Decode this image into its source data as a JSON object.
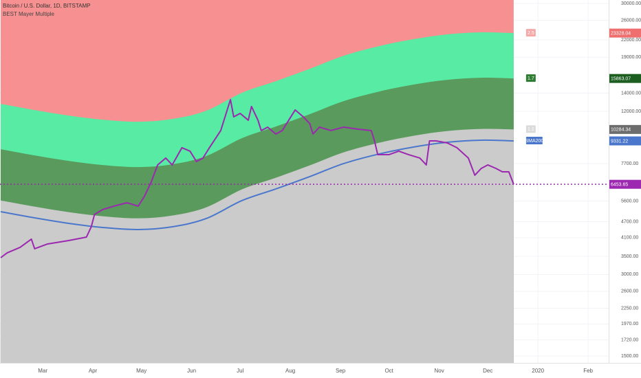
{
  "chart_data": {
    "type": "mayer-bands",
    "title": "Bitcoin / U.S. Dollar, 1D, BITSTAMP",
    "subtitle": "BEST Mayer Multiple",
    "log_scale": true,
    "grid": true,
    "top_fill": "#f79191",
    "xlim": [
      32.6,
      408.7
    ],
    "xticks": [
      {
        "value": 59,
        "label": "Mar"
      },
      {
        "value": 90,
        "label": "Apr"
      },
      {
        "value": 120,
        "label": "May"
      },
      {
        "value": 151,
        "label": "Jun"
      },
      {
        "value": 181,
        "label": "Jul"
      },
      {
        "value": 212,
        "label": "Aug"
      },
      {
        "value": 243,
        "label": "Sep"
      },
      {
        "value": 273,
        "label": "Oct"
      },
      {
        "value": 304,
        "label": "Nov"
      },
      {
        "value": 334,
        "label": "Dec"
      },
      {
        "value": 365,
        "label": "2020"
      },
      {
        "value": 396,
        "label": "Feb"
      }
    ],
    "ylim": [
      1415,
      30900
    ],
    "yticks": [
      {
        "value": 30000,
        "label": "30000.00"
      },
      {
        "value": 26000,
        "label": "26000.00"
      },
      {
        "value": 22000,
        "label": "22000.00"
      },
      {
        "value": 19000,
        "label": "19000.00"
      },
      {
        "value": 14000,
        "label": "14000.00"
      },
      {
        "value": 12000,
        "label": "12000.00"
      },
      {
        "value": 7700,
        "label": "7700.00"
      },
      {
        "value": 5600,
        "label": "5600.00"
      },
      {
        "value": 4700,
        "label": "4700.00"
      },
      {
        "value": 4100,
        "label": "4100.00"
      },
      {
        "value": 3500,
        "label": "3500.00"
      },
      {
        "value": 3000,
        "label": "3000.00"
      },
      {
        "value": 2600,
        "label": "2600.00"
      },
      {
        "value": 2250,
        "label": "2250.00"
      },
      {
        "value": 1970,
        "label": "1970.00"
      },
      {
        "value": 1720,
        "label": "1720.00"
      },
      {
        "value": 1500,
        "label": "1500.00"
      }
    ],
    "series": [
      {
        "name": "2.5",
        "kind": "band",
        "color": "#f28b8b",
        "tag_color": "#ef6f6f",
        "fill": "#57eba4",
        "x": [
          33,
          54,
          75,
          96,
          118,
          139,
          160,
          182,
          203,
          224,
          245,
          267,
          288,
          309,
          330,
          350
        ],
        "values": [
          12788,
          12133,
          11578,
          11180,
          10985,
          11245,
          12060,
          14040,
          15505,
          17225,
          19245,
          20888,
          22143,
          23068,
          23475,
          23328.04
        ]
      },
      {
        "name": "1.7",
        "kind": "band",
        "color": "#2e7d32",
        "tag_color": "#1b5e20",
        "fill": "#5a9a5c",
        "x": [
          33,
          54,
          75,
          96,
          118,
          139,
          160,
          182,
          203,
          224,
          245,
          267,
          288,
          309,
          330,
          350
        ],
        "values": [
          8696,
          8250,
          7873,
          7602,
          7470,
          7647,
          8201,
          9547,
          10543,
          11713,
          13087,
          14204,
          15057,
          15686,
          15963,
          15863.07
        ]
      },
      {
        "name": "1.1",
        "kind": "band",
        "color": "#cfcfcf",
        "tag_color": "#6d6d6d",
        "fill": "#cbcbcb",
        "x": [
          33,
          54,
          75,
          96,
          118,
          139,
          160,
          182,
          203,
          224,
          245,
          267,
          288,
          309,
          330,
          350
        ],
        "values": [
          5627,
          5338,
          5094,
          4919,
          4833,
          4948,
          5306,
          6178,
          6822,
          7579,
          8468,
          9191,
          9743,
          10150,
          10329,
          10284.34
        ]
      },
      {
        "name": "SMA200",
        "kind": "line",
        "color": "#4a76cc",
        "tag_color": "#4a76cc",
        "x": [
          33,
          54,
          75,
          96,
          118,
          139,
          160,
          182,
          203,
          224,
          245,
          267,
          288,
          309,
          330,
          350
        ],
        "values": [
          5115,
          4853,
          4631,
          4472,
          4394,
          4498,
          4824,
          5616,
          6202,
          6890,
          7698,
          8355,
          8857,
          9227,
          9390,
          9331.22
        ]
      },
      {
        "kind": "price",
        "color": "#9c27b0",
        "tag_color": "#9c27b0",
        "x": [
          33,
          37,
          45,
          52,
          54,
          62,
          75,
          86,
          89,
          91,
          96,
          103,
          111,
          118,
          122,
          126,
          130,
          135,
          139,
          145,
          150,
          154,
          158,
          162,
          169,
          173,
          175,
          177,
          181,
          186,
          188,
          192,
          194,
          198,
          203,
          207,
          211,
          215,
          220,
          224,
          226,
          230,
          237,
          245,
          254,
          262,
          264,
          266,
          273,
          279,
          285,
          292,
          296,
          298,
          302,
          309,
          315,
          322,
          326,
          330,
          334,
          339,
          343,
          347,
          350
        ],
        "values": [
          3458,
          3603,
          3775,
          4049,
          3731,
          3887,
          4002,
          4120,
          4498,
          4997,
          5205,
          5360,
          5518,
          5360,
          5850,
          6575,
          7609,
          8066,
          7609,
          8805,
          8552,
          7834,
          8066,
          8805,
          10189,
          12141,
          13252,
          11452,
          11791,
          11124,
          12501,
          11124,
          10189,
          10491,
          9896,
          10189,
          11124,
          12141,
          11452,
          10801,
          9896,
          10491,
          10189,
          10491,
          10309,
          10189,
          9335,
          8305,
          8305,
          8552,
          8305,
          8066,
          7609,
          9335,
          9335,
          9171,
          8805,
          8066,
          6970,
          7389,
          7609,
          7389,
          7176,
          7176,
          6453.65
        ]
      }
    ]
  }
}
